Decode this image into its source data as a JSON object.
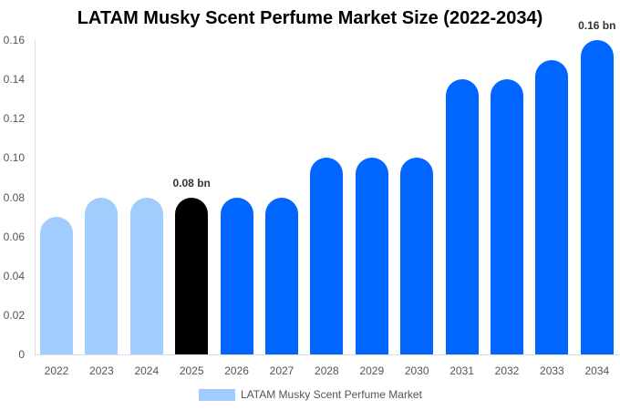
{
  "title": "LATAM Musky Scent Perfume Market Size (2022-2034)",
  "legend": {
    "label": "LATAM Musky Scent Perfume Market",
    "color": "#a0cdfd"
  },
  "colors": {
    "historical": "#a0cdfd",
    "current": "#000000",
    "forecast": "#0066ff"
  },
  "y_ticks": [
    "0.16",
    "0.14",
    "0.12",
    "0.10",
    "0.08",
    "0.06",
    "0.04",
    "0.02",
    "0"
  ],
  "annotations": [
    {
      "year": "2025",
      "text": "0.08 bn"
    },
    {
      "year": "2034",
      "text": "0.16 bn"
    }
  ],
  "chart_data": {
    "type": "bar",
    "title": "LATAM Musky Scent Perfume Market Size (2022-2034)",
    "xlabel": "",
    "ylabel": "",
    "ylim": [
      0,
      0.16
    ],
    "grid": false,
    "legend_position": "bottom",
    "categories": [
      "2022",
      "2023",
      "2024",
      "2025",
      "2026",
      "2027",
      "2028",
      "2029",
      "2030",
      "2031",
      "2032",
      "2033",
      "2034"
    ],
    "series": [
      {
        "name": "LATAM Musky Scent Perfume Market",
        "values": [
          0.07,
          0.08,
          0.08,
          0.08,
          0.08,
          0.08,
          0.1,
          0.1,
          0.1,
          0.14,
          0.14,
          0.15,
          0.16
        ]
      }
    ],
    "bar_colors": [
      "#a0cdfd",
      "#a0cdfd",
      "#a0cdfd",
      "#000000",
      "#0066ff",
      "#0066ff",
      "#0066ff",
      "#0066ff",
      "#0066ff",
      "#0066ff",
      "#0066ff",
      "#0066ff",
      "#0066ff"
    ],
    "annotations": [
      {
        "x": "2025",
        "text": "0.08 bn"
      },
      {
        "x": "2034",
        "text": "0.16 bn"
      }
    ]
  }
}
